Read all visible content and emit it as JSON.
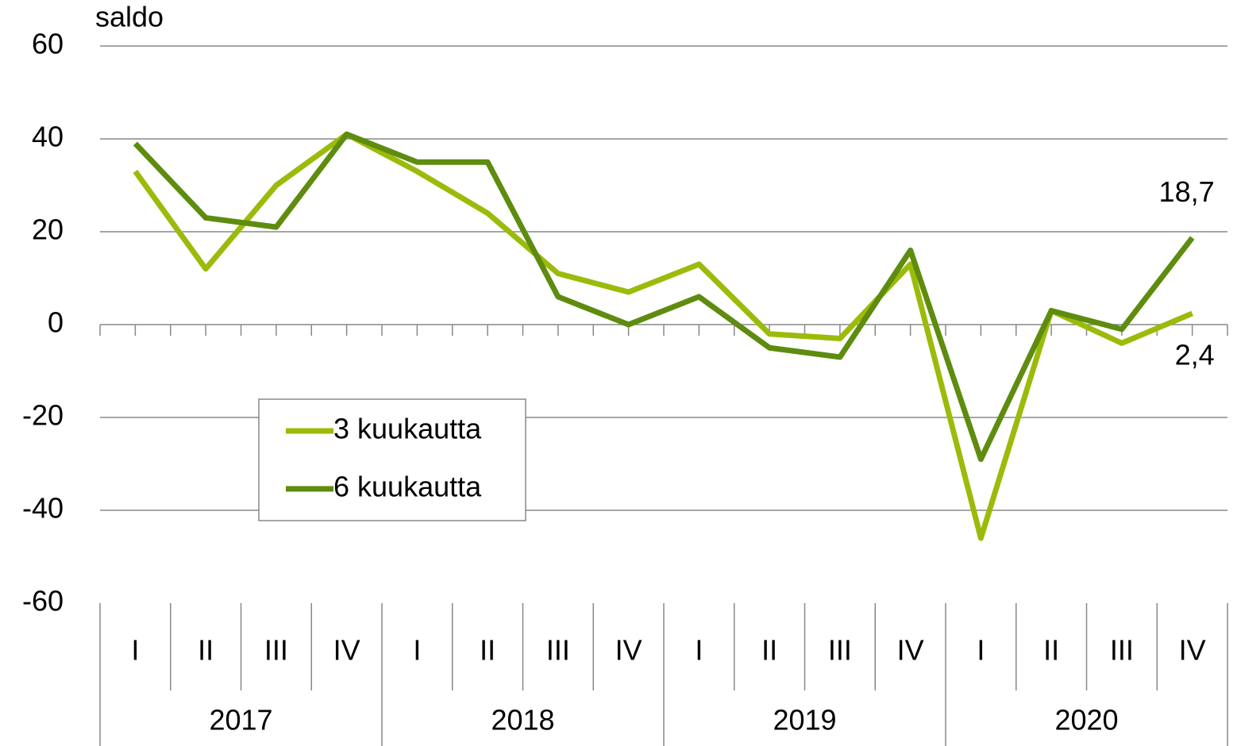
{
  "chart_data": {
    "type": "line",
    "y_label": "saldo",
    "categories": [
      "I",
      "II",
      "III",
      "IV",
      "I",
      "II",
      "III",
      "IV",
      "I",
      "II",
      "III",
      "IV",
      "I",
      "II",
      "III",
      "IV"
    ],
    "years": [
      "2017",
      "2018",
      "2019",
      "2020"
    ],
    "series": [
      {
        "name": "3 kuukautta",
        "color": "#9bbb0a",
        "values": [
          33,
          12,
          30,
          41,
          33,
          24,
          11,
          7,
          13,
          -2,
          -3,
          13,
          -46,
          3,
          -4,
          2.4
        ],
        "value_labels": [
          null,
          null,
          null,
          null,
          null,
          null,
          null,
          null,
          null,
          null,
          null,
          null,
          null,
          null,
          null,
          "2,4"
        ]
      },
      {
        "name": "6 kuukautta",
        "color": "#5e8c0e",
        "values": [
          39,
          23,
          21,
          41,
          35,
          35,
          6,
          0,
          6,
          -5,
          -7,
          16,
          -29,
          3,
          -1,
          18.7
        ],
        "value_labels": [
          null,
          null,
          null,
          null,
          null,
          null,
          null,
          null,
          null,
          null,
          null,
          null,
          null,
          null,
          null,
          "18,7"
        ]
      }
    ],
    "ylim": [
      -60,
      60
    ],
    "yticks": [
      -60,
      -40,
      -20,
      0,
      20,
      40,
      60
    ],
    "grid": true
  }
}
